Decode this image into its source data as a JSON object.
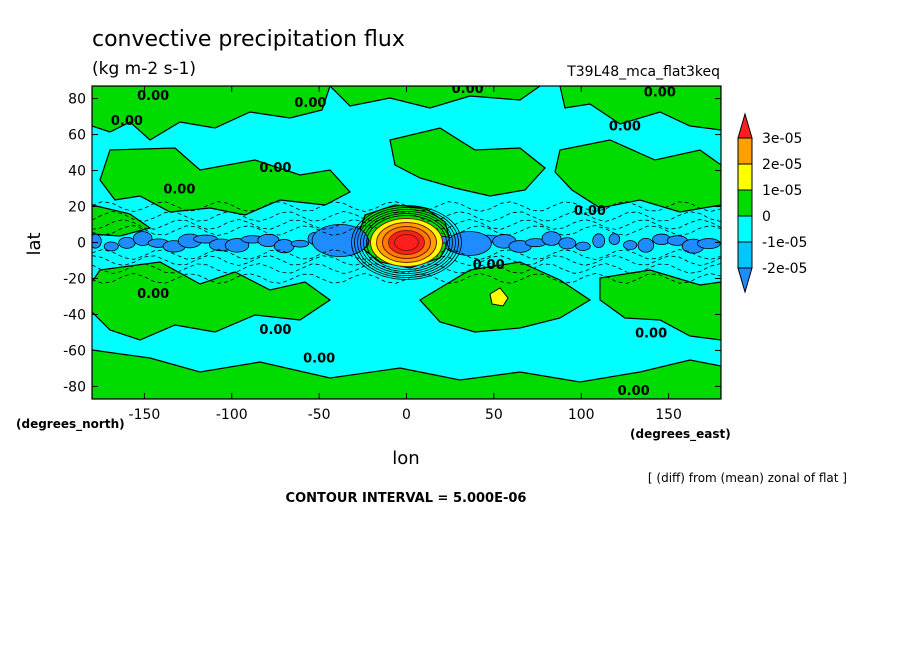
{
  "chart_data": {
    "type": "heatmap",
    "title": "convective precipitation flux",
    "units": "(kg m-2 s-1)",
    "run_label": "T39L48_mca_flat3keq",
    "xlabel": "lon",
    "ylabel": "lat",
    "x_unit_label": "(degrees_east)",
    "y_unit_label": "(degrees_north)",
    "xlim": [
      -180,
      180
    ],
    "ylim": [
      -87,
      87
    ],
    "x_ticks": [
      -150,
      -100,
      -50,
      0,
      50,
      100,
      150
    ],
    "y_ticks": [
      80,
      60,
      40,
      20,
      0,
      -20,
      -40,
      -60,
      -80
    ],
    "x_tick_labels": [
      "-150",
      "-100",
      "-50",
      "0",
      "50",
      "100",
      "150"
    ],
    "y_tick_labels": [
      "80",
      "60",
      "40",
      "20",
      "0",
      "-20",
      "-40",
      "-60",
      "-80"
    ],
    "contour_interval_text": "CONTOUR INTERVAL = 5.000E-06",
    "note": "[ (diff) from (mean) zonal of flat ]",
    "colorbar": {
      "orientation": "vertical",
      "placement": "right",
      "levels": [
        -2e-05,
        -1e-05,
        0,
        1e-05,
        2e-05,
        3e-05
      ],
      "labels": [
        "3e-05",
        "2e-05",
        "1e-05",
        "0",
        "-1e-05",
        "-2e-05"
      ],
      "colors": [
        "#1e8cff",
        "#00c8ff",
        "#00ffff",
        "#00dc00",
        "#ffff00",
        "#ffa000",
        "#ff1e1e"
      ]
    },
    "contour_labels": [
      {
        "text": "0.00",
        "lon": 35,
        "lat": 86
      },
      {
        "text": "0.00",
        "lon": -145,
        "lat": 82
      },
      {
        "text": "0.00",
        "lon": -55,
        "lat": 78
      },
      {
        "text": "0.00",
        "lon": 145,
        "lat": 84
      },
      {
        "text": "0.00",
        "lon": -160,
        "lat": 68
      },
      {
        "text": "0.00",
        "lon": 125,
        "lat": 65
      },
      {
        "text": "0.00",
        "lon": -75,
        "lat": 42
      },
      {
        "text": "0.00",
        "lon": -130,
        "lat": 30
      },
      {
        "text": "0.00",
        "lon": 105,
        "lat": 18
      },
      {
        "text": "0.00",
        "lon": -145,
        "lat": -28
      },
      {
        "text": "0.00",
        "lon": -75,
        "lat": -48
      },
      {
        "text": "0.00",
        "lon": -50,
        "lat": -64
      },
      {
        "text": "0.00",
        "lon": 140,
        "lat": -50
      },
      {
        "text": "0.00",
        "lon": 47,
        "lat": -12
      },
      {
        "text": "0.00",
        "lon": 130,
        "lat": -82
      }
    ],
    "anomalies": [
      {
        "name": "positive-core",
        "lon": 0,
        "lat": 0,
        "value": 3.5e-05
      },
      {
        "name": "negative-equatorial-band",
        "lon_range": [
          -180,
          180
        ],
        "lat": 0,
        "value": -1.5e-05
      },
      {
        "name": "small-positive-cell",
        "lon": 50,
        "lat": -33,
        "value": 1.5e-05
      }
    ]
  }
}
